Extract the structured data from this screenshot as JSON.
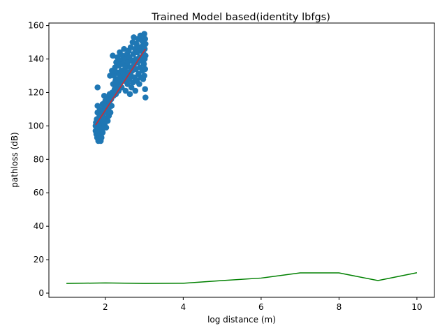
{
  "chart_data": {
    "type": "scatter",
    "title": "Trained Model based(identity lbfgs)",
    "xlabel": "log distance (m)",
    "ylabel": "pathloss (dB)",
    "xlim": [
      0.55,
      10.45
    ],
    "ylim": [
      -2.5,
      161.5
    ],
    "xticks": [
      2,
      4,
      6,
      8,
      10
    ],
    "yticks": [
      0,
      20,
      40,
      60,
      80,
      100,
      120,
      140,
      160
    ],
    "grid": false,
    "colors": {
      "scatter": "#1f77b4",
      "fit_line": "#d62728",
      "error_line": "#008000"
    },
    "series": [
      {
        "kind": "scatter",
        "points": [
          [
            1.75,
            100
          ],
          [
            1.75,
            97
          ],
          [
            1.76,
            102
          ],
          [
            1.77,
            95
          ],
          [
            1.78,
            99
          ],
          [
            1.78,
            104
          ],
          [
            1.79,
            93
          ],
          [
            1.8,
            108
          ],
          [
            1.8,
            112
          ],
          [
            1.81,
            96
          ],
          [
            1.82,
            98
          ],
          [
            1.82,
            91
          ],
          [
            1.83,
            101
          ],
          [
            1.84,
            92
          ],
          [
            1.85,
            106
          ],
          [
            1.85,
            94
          ],
          [
            1.86,
            110
          ],
          [
            1.87,
            97
          ],
          [
            1.88,
            91
          ],
          [
            1.88,
            103
          ],
          [
            1.89,
            95
          ],
          [
            1.9,
            100
          ],
          [
            1.9,
            93
          ],
          [
            1.91,
            107
          ],
          [
            1.92,
            98
          ],
          [
            1.93,
            113
          ],
          [
            1.93,
            96
          ],
          [
            1.94,
            102
          ],
          [
            1.95,
            109
          ],
          [
            1.96,
            105
          ],
          [
            1.97,
            118
          ],
          [
            1.98,
            101
          ],
          [
            1.99,
            111
          ],
          [
            2.0,
            115
          ],
          [
            2.01,
            104
          ],
          [
            2.02,
            99
          ],
          [
            2.03,
            112
          ],
          [
            2.04,
            108
          ],
          [
            2.05,
            117
          ],
          [
            2.06,
            103
          ],
          [
            2.08,
            110
          ],
          [
            2.09,
            106
          ],
          [
            2.1,
            114
          ],
          [
            2.11,
            119
          ],
          [
            2.12,
            130
          ],
          [
            2.13,
            108
          ],
          [
            2.15,
            116
          ],
          [
            2.16,
            112
          ],
          [
            2.17,
            133
          ],
          [
            2.18,
            120
          ],
          [
            2.19,
            142
          ],
          [
            2.2,
            125
          ],
          [
            2.21,
            118
          ],
          [
            2.22,
            130
          ],
          [
            2.24,
            122
          ],
          [
            2.25,
            135
          ],
          [
            2.26,
            127
          ],
          [
            2.27,
            119
          ],
          [
            2.28,
            138
          ],
          [
            2.29,
            124
          ],
          [
            2.3,
            132
          ],
          [
            2.31,
            141
          ],
          [
            2.33,
            128
          ],
          [
            2.34,
            121
          ],
          [
            2.35,
            136
          ],
          [
            2.36,
            131
          ],
          [
            2.37,
            144
          ],
          [
            2.38,
            126
          ],
          [
            2.4,
            139
          ],
          [
            2.41,
            133
          ],
          [
            2.42,
            123
          ],
          [
            2.43,
            129
          ],
          [
            2.44,
            142
          ],
          [
            2.45,
            137
          ],
          [
            2.47,
            131
          ],
          [
            2.48,
            146
          ],
          [
            2.49,
            127
          ],
          [
            2.5,
            134
          ],
          [
            2.51,
            140
          ],
          [
            2.52,
            121
          ],
          [
            2.53,
            136
          ],
          [
            2.55,
            130
          ],
          [
            2.56,
            143
          ],
          [
            2.57,
            125
          ],
          [
            2.58,
            138
          ],
          [
            2.59,
            132
          ],
          [
            2.6,
            145
          ],
          [
            2.61,
            128
          ],
          [
            2.62,
            141
          ],
          [
            2.63,
            119
          ],
          [
            2.64,
            135
          ],
          [
            2.65,
            147
          ],
          [
            2.66,
            130
          ],
          [
            2.67,
            123
          ],
          [
            2.68,
            139
          ],
          [
            2.69,
            133
          ],
          [
            2.7,
            150
          ],
          [
            2.71,
            126
          ],
          [
            2.72,
            143
          ],
          [
            2.73,
            153
          ],
          [
            2.74,
            137
          ],
          [
            2.75,
            129
          ],
          [
            2.76,
            146
          ],
          [
            2.77,
            121
          ],
          [
            2.78,
            140
          ],
          [
            2.79,
            134
          ],
          [
            2.8,
            149
          ],
          [
            2.81,
            127
          ],
          [
            2.82,
            144
          ],
          [
            2.83,
            138
          ],
          [
            2.84,
            152
          ],
          [
            2.85,
            131
          ],
          [
            2.86,
            147
          ],
          [
            2.87,
            125
          ],
          [
            2.88,
            141
          ],
          [
            2.89,
            135
          ],
          [
            2.9,
            154
          ],
          [
            2.91,
            129
          ],
          [
            2.92,
            145
          ],
          [
            2.93,
            139
          ],
          [
            2.94,
            151
          ],
          [
            2.95,
            133
          ],
          [
            2.96,
            148
          ],
          [
            2.97,
            128
          ],
          [
            2.98,
            143
          ],
          [
            2.99,
            137
          ],
          [
            3.0,
            155
          ],
          [
            3.0,
            130
          ],
          [
            3.01,
            146
          ],
          [
            3.01,
            140
          ],
          [
            3.02,
            152
          ],
          [
            3.02,
            134
          ],
          [
            3.02,
            122
          ],
          [
            3.03,
            117
          ],
          [
            3.03,
            149
          ],
          [
            3.03,
            142
          ],
          [
            1.8,
            123
          ]
        ]
      },
      {
        "kind": "line",
        "x": [
          1.75,
          3.03
        ],
        "y": [
          100.5,
          146
        ]
      },
      {
        "kind": "line",
        "x": [
          1,
          2,
          3,
          4,
          5,
          6,
          7,
          8,
          9,
          10
        ],
        "y": [
          5.8,
          6.1,
          5.8,
          5.9,
          7.5,
          9.0,
          12.1,
          12.1,
          7.5,
          12.2
        ]
      }
    ]
  }
}
